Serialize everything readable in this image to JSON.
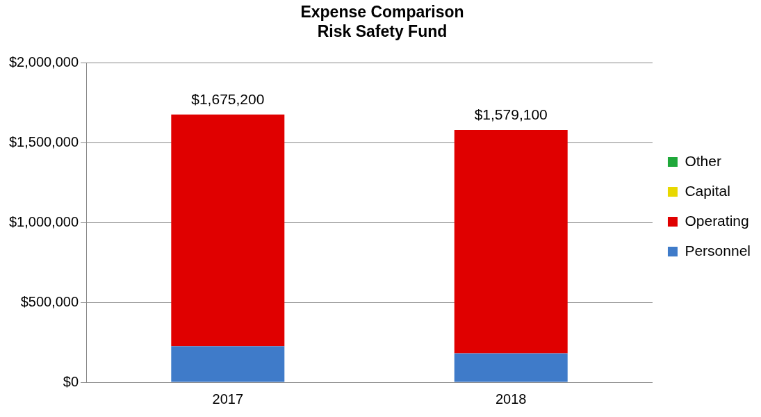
{
  "chart_data": {
    "type": "bar",
    "title": "Expense Comparison\nRisk Safety Fund",
    "categories": [
      "2017",
      "2018"
    ],
    "stacked": true,
    "series": [
      {
        "name": "Personnel",
        "color": "#3f7bc9",
        "values": [
          225000,
          180000
        ]
      },
      {
        "name": "Operating",
        "color": "#e00000",
        "values": [
          1450200,
          1399100
        ]
      },
      {
        "name": "Capital",
        "color": "#e8d800",
        "values": [
          0,
          0
        ]
      },
      {
        "name": "Other",
        "color": "#1fa83a",
        "values": [
          0,
          0
        ]
      }
    ],
    "ylim": [
      0,
      2000000
    ],
    "yticks": [
      {
        "value": 0,
        "label": "$0"
      },
      {
        "value": 500000,
        "label": "$500,000"
      },
      {
        "value": 1000000,
        "label": "$1,000,000"
      },
      {
        "value": 1500000,
        "label": "$1,500,000"
      },
      {
        "value": 2000000,
        "label": "$2,000,000"
      }
    ],
    "totals": [
      "$1,675,200",
      "$1,579,100"
    ],
    "grid": "y",
    "legend": "right"
  }
}
